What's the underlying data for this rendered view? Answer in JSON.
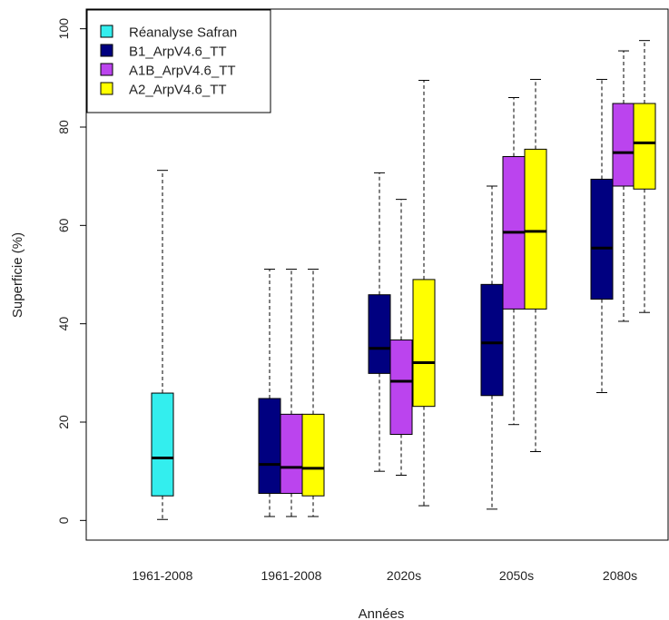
{
  "chart_data": {
    "type": "boxplot",
    "title": "",
    "xlabel": "Années",
    "ylabel": "Superficie (%)",
    "ylim": [
      -4,
      104
    ],
    "yticks": [
      0,
      20,
      40,
      60,
      80,
      100
    ],
    "grid": false,
    "legend_position": "top-left",
    "categories": [
      "1961-2008",
      "1961-2008",
      "2020s",
      "2050s",
      "2080s"
    ],
    "series": [
      {
        "name": "Réanalyse Safran",
        "color": "#33eeee"
      },
      {
        "name": "B1_ArpV4.6_TT",
        "color": "#000080"
      },
      {
        "name": "A1B_ArpV4.6_TT",
        "color": "#bb44ee"
      },
      {
        "name": "A2_ArpV4.6_TT",
        "color": "#ffff00"
      }
    ],
    "boxes": [
      {
        "category": 0,
        "series": 0,
        "min": 0.2,
        "q1": 5.0,
        "median": 12.7,
        "q3": 25.9,
        "max": 71.2
      },
      {
        "category": 1,
        "series": 1,
        "min": 0.8,
        "q1": 5.5,
        "median": 11.4,
        "q3": 24.8,
        "max": 51.1
      },
      {
        "category": 1,
        "series": 2,
        "min": 0.8,
        "q1": 5.5,
        "median": 10.8,
        "q3": 21.6,
        "max": 51.1
      },
      {
        "category": 1,
        "series": 3,
        "min": 0.8,
        "q1": 5.0,
        "median": 10.6,
        "q3": 21.6,
        "max": 51.1
      },
      {
        "category": 2,
        "series": 1,
        "min": 10.0,
        "q1": 29.9,
        "median": 35.0,
        "q3": 45.9,
        "max": 70.7
      },
      {
        "category": 2,
        "series": 2,
        "min": 9.2,
        "q1": 17.5,
        "median": 28.3,
        "q3": 36.7,
        "max": 65.3
      },
      {
        "category": 2,
        "series": 3,
        "min": 3.0,
        "q1": 23.2,
        "median": 32.1,
        "q3": 49.0,
        "max": 89.5
      },
      {
        "category": 3,
        "series": 1,
        "min": 2.3,
        "q1": 25.4,
        "median": 36.1,
        "q3": 48.0,
        "max": 68.0
      },
      {
        "category": 3,
        "series": 2,
        "min": 19.5,
        "q1": 43.0,
        "median": 58.6,
        "q3": 74.0,
        "max": 86.0
      },
      {
        "category": 3,
        "series": 3,
        "min": 14.0,
        "q1": 43.0,
        "median": 58.8,
        "q3": 75.5,
        "max": 89.7
      },
      {
        "category": 4,
        "series": 1,
        "min": 26.0,
        "q1": 45.0,
        "median": 55.4,
        "q3": 69.4,
        "max": 89.7
      },
      {
        "category": 4,
        "series": 2,
        "min": 40.5,
        "q1": 68.0,
        "median": 74.8,
        "q3": 84.8,
        "max": 95.5
      },
      {
        "category": 4,
        "series": 3,
        "min": 42.3,
        "q1": 67.4,
        "median": 76.8,
        "q3": 84.8,
        "max": 97.6
      }
    ]
  }
}
